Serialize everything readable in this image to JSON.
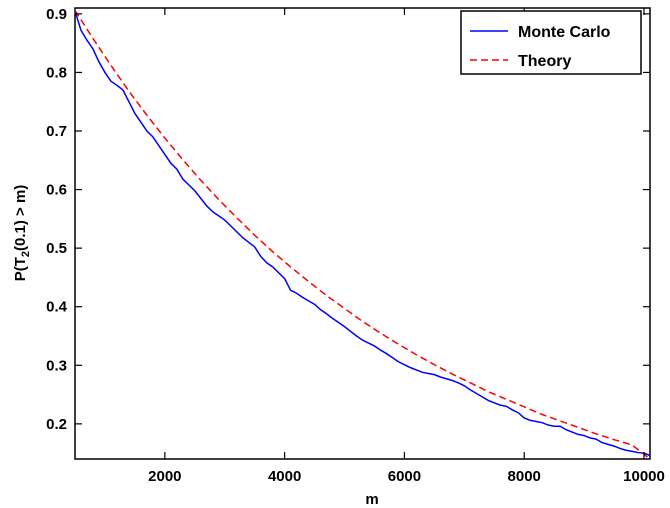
{
  "chart_data": {
    "type": "line",
    "xlabel": "m",
    "ylabel": "P(T2(0.1) > m)",
    "ylabel_parts": {
      "pre": "P(T",
      "sub": "2",
      "post": "(0.1) > m)"
    },
    "xlim": [
      500,
      10100
    ],
    "ylim": [
      0.14,
      0.91
    ],
    "xticks": [
      2000,
      4000,
      6000,
      8000,
      10000
    ],
    "yticks": [
      0.2,
      0.3,
      0.4,
      0.5,
      0.6,
      0.7,
      0.8,
      0.9
    ],
    "grid": false,
    "legend_position": "top-right",
    "series": [
      {
        "name": "Monte Carlo",
        "color": "#0000ff",
        "style": "solid",
        "x": [
          500,
          600,
          700,
          800,
          900,
          1000,
          1100,
          1200,
          1300,
          1400,
          1500,
          1600,
          1700,
          1800,
          1900,
          2000,
          2100,
          2200,
          2300,
          2400,
          2500,
          2600,
          2700,
          2800,
          2900,
          3000,
          3100,
          3200,
          3300,
          3400,
          3500,
          3600,
          3700,
          3800,
          3900,
          4000,
          4100,
          4200,
          4300,
          4400,
          4500,
          4600,
          4700,
          4800,
          4900,
          5000,
          5100,
          5200,
          5300,
          5400,
          5500,
          5600,
          5700,
          5800,
          5900,
          6000,
          6100,
          6200,
          6300,
          6400,
          6500,
          6600,
          6700,
          6800,
          6900,
          7000,
          7100,
          7200,
          7300,
          7400,
          7500,
          7600,
          7700,
          7800,
          7900,
          8000,
          8100,
          8200,
          8300,
          8400,
          8500,
          8600,
          8700,
          8800,
          8900,
          9000,
          9100,
          9200,
          9300,
          9400,
          9500,
          9600,
          9700,
          9800,
          9900,
          10000,
          10100
        ],
        "y": [
          0.905,
          0.872,
          0.855,
          0.84,
          0.818,
          0.8,
          0.785,
          0.778,
          0.77,
          0.75,
          0.73,
          0.715,
          0.7,
          0.69,
          0.675,
          0.66,
          0.645,
          0.635,
          0.618,
          0.608,
          0.598,
          0.585,
          0.572,
          0.562,
          0.555,
          0.548,
          0.538,
          0.528,
          0.518,
          0.51,
          0.502,
          0.486,
          0.475,
          0.468,
          0.458,
          0.448,
          0.428,
          0.423,
          0.416,
          0.41,
          0.404,
          0.395,
          0.388,
          0.38,
          0.373,
          0.366,
          0.358,
          0.35,
          0.343,
          0.338,
          0.333,
          0.326,
          0.32,
          0.313,
          0.306,
          0.301,
          0.296,
          0.292,
          0.288,
          0.286,
          0.284,
          0.28,
          0.277,
          0.274,
          0.27,
          0.265,
          0.258,
          0.252,
          0.246,
          0.24,
          0.236,
          0.232,
          0.23,
          0.224,
          0.219,
          0.21,
          0.206,
          0.204,
          0.202,
          0.198,
          0.196,
          0.196,
          0.19,
          0.186,
          0.182,
          0.18,
          0.176,
          0.174,
          0.168,
          0.165,
          0.162,
          0.158,
          0.155,
          0.153,
          0.151,
          0.15,
          0.146
        ]
      },
      {
        "name": "Theory",
        "color": "#ff0000",
        "style": "dashed",
        "x": [
          500,
          800,
          1100,
          1400,
          1700,
          2000,
          2300,
          2600,
          2900,
          3200,
          3500,
          3800,
          4100,
          4400,
          4700,
          5000,
          5300,
          5600,
          5900,
          6200,
          6500,
          6800,
          7100,
          7400,
          7700,
          8000,
          8300,
          8600,
          8900,
          9200,
          9500,
          9800,
          10100
        ],
        "y": [
          0.906,
          0.858,
          0.812,
          0.768,
          0.727,
          0.688,
          0.651,
          0.616,
          0.583,
          0.552,
          0.522,
          0.494,
          0.468,
          0.443,
          0.419,
          0.397,
          0.375,
          0.355,
          0.336,
          0.318,
          0.301,
          0.285,
          0.27,
          0.255,
          0.242,
          0.229,
          0.216,
          0.205,
          0.194,
          0.183,
          0.173,
          0.164,
          0.14
        ]
      }
    ]
  }
}
